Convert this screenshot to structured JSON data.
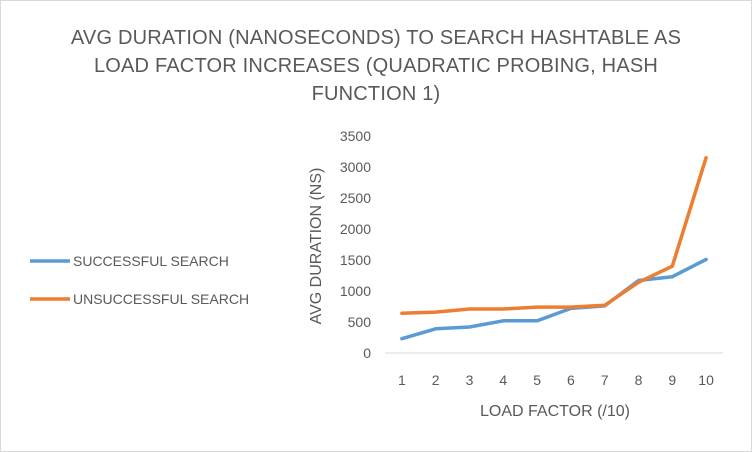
{
  "chart_data": {
    "type": "line",
    "title_lines": [
      "AVG DURATION (NANOSECONDS) TO SEARCH HASHTABLE AS",
      "LOAD FACTOR INCREASES (QUADRATIC PROBING, HASH",
      "FUNCTION 1)"
    ],
    "xlabel": "LOAD FACTOR (/10)",
    "ylabel": "AVG DURATION (NS)",
    "categories": [
      "1",
      "2",
      "3",
      "4",
      "5",
      "6",
      "7",
      "8",
      "9",
      "10"
    ],
    "ylim": [
      0,
      3500
    ],
    "yticks": [
      "0",
      "500",
      "1000",
      "1500",
      "2000",
      "2500",
      "3000",
      "3500"
    ],
    "grid": false,
    "legend_position": "left",
    "series": [
      {
        "name": "SUCCESSFUL SEARCH",
        "color": "#5b9bd5",
        "values": [
          230,
          390,
          420,
          520,
          520,
          720,
          760,
          1170,
          1230,
          1510
        ]
      },
      {
        "name": "UNSUCCESSFUL SEARCH",
        "color": "#ed7d31",
        "values": [
          640,
          660,
          710,
          710,
          740,
          740,
          770,
          1140,
          1400,
          3150
        ]
      }
    ]
  }
}
